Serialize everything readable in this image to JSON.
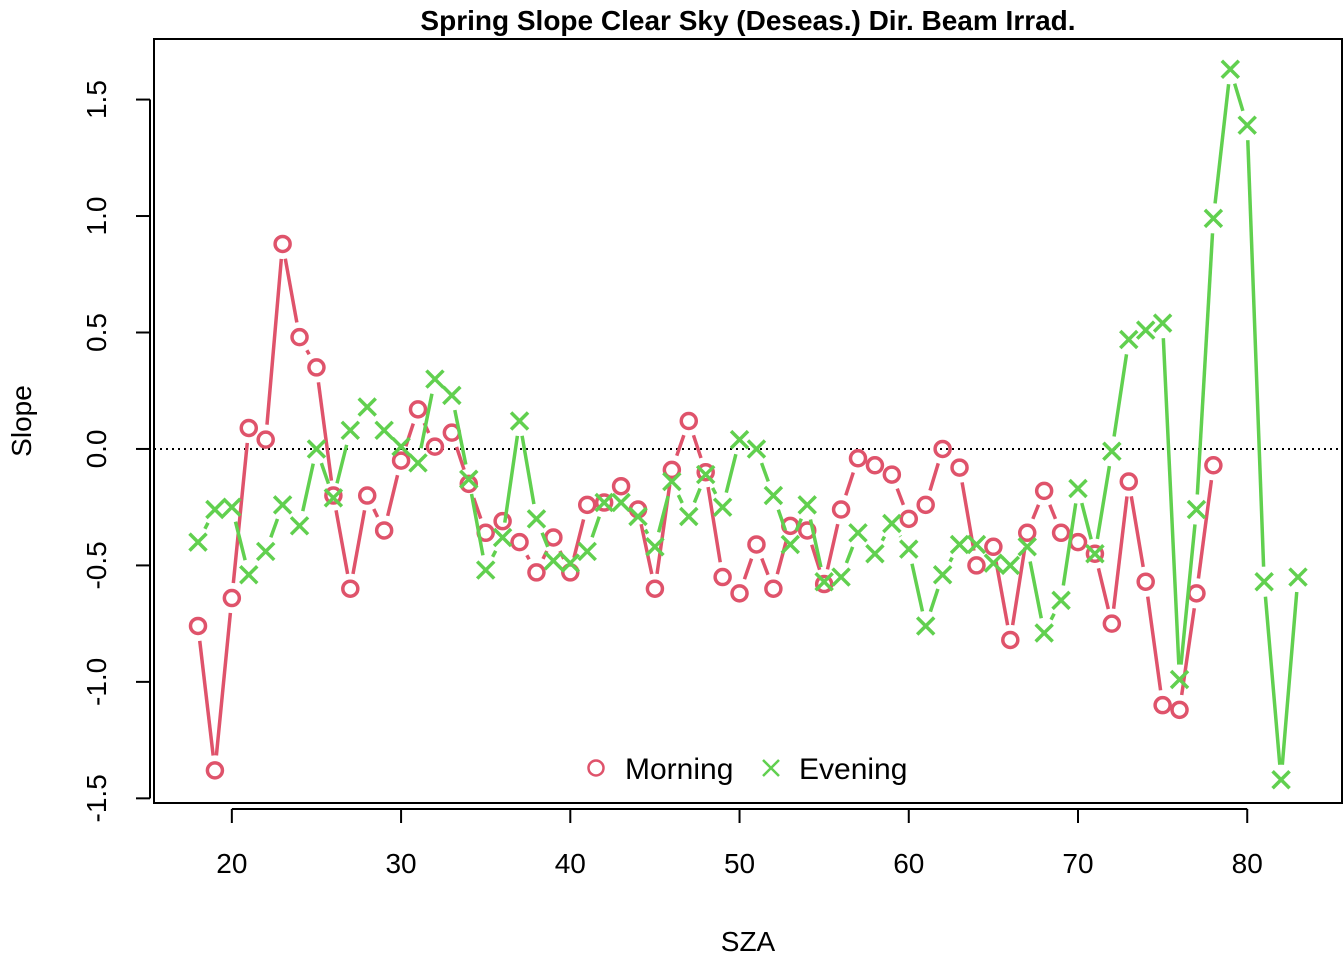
{
  "chart_data": {
    "type": "line",
    "title": "Spring Slope Clear Sky (Deseas.) Dir. Beam Irrad.",
    "xlabel": "SZA",
    "ylabel": "Slope",
    "xlim": [
      15.4,
      85.6
    ],
    "ylim": [
      -1.52,
      1.76
    ],
    "x_ticks": [
      20,
      30,
      40,
      50,
      60,
      70,
      80
    ],
    "x_tick_labels": [
      "20",
      "30",
      "40",
      "50",
      "60",
      "70",
      "80"
    ],
    "y_ticks": [
      -1.5,
      -1.0,
      -0.5,
      0.0,
      0.5,
      1.0,
      1.5
    ],
    "y_tick_labels": [
      "-1.5",
      "-1.0",
      "-0.5",
      "0.0",
      "0.5",
      "1.0",
      "1.5"
    ],
    "reference_line": {
      "y": 0,
      "style": "dotted"
    },
    "grid": false,
    "legend": {
      "placement": "bottom-center"
    },
    "series": [
      {
        "name": "Morning",
        "marker": "circle",
        "color": "#DF536B",
        "x": [
          18,
          19,
          20,
          21,
          22,
          23,
          24,
          25,
          26,
          27,
          28,
          29,
          30,
          31,
          32,
          33,
          34,
          35,
          36,
          37,
          38,
          39,
          40,
          41,
          42,
          43,
          44,
          45,
          46,
          47,
          48,
          49,
          50,
          51,
          52,
          53,
          54,
          55,
          56,
          57,
          58,
          59,
          60,
          61,
          62,
          63,
          64,
          65,
          66,
          67,
          68,
          69,
          70,
          71,
          72,
          73,
          74,
          75,
          76,
          77,
          78
        ],
        "y": [
          -0.76,
          -1.38,
          -0.64,
          0.09,
          0.04,
          0.88,
          0.48,
          0.35,
          -0.2,
          -0.6,
          -0.2,
          -0.35,
          -0.05,
          0.17,
          0.01,
          0.07,
          -0.15,
          -0.36,
          -0.31,
          -0.4,
          -0.53,
          -0.38,
          -0.53,
          -0.24,
          -0.23,
          -0.16,
          -0.26,
          -0.6,
          -0.09,
          0.12,
          -0.1,
          -0.55,
          -0.62,
          -0.41,
          -0.6,
          -0.33,
          -0.35,
          -0.58,
          -0.26,
          -0.04,
          -0.07,
          -0.11,
          -0.3,
          -0.24,
          0.0,
          -0.08,
          -0.5,
          -0.42,
          -0.82,
          -0.36,
          -0.18,
          -0.36,
          -0.4,
          -0.45,
          -0.75,
          -0.14,
          -0.57,
          -1.1,
          -1.12,
          -0.62,
          -0.07
        ]
      },
      {
        "name": "Evening",
        "marker": "cross",
        "color": "#61D04F",
        "x": [
          18,
          19,
          20,
          21,
          22,
          23,
          24,
          25,
          26,
          27,
          28,
          29,
          30,
          31,
          32,
          33,
          34,
          35,
          36,
          37,
          38,
          39,
          40,
          41,
          42,
          43,
          44,
          45,
          46,
          47,
          48,
          49,
          50,
          51,
          52,
          53,
          54,
          55,
          56,
          57,
          58,
          59,
          60,
          61,
          62,
          63,
          64,
          65,
          66,
          67,
          68,
          69,
          70,
          71,
          72,
          73,
          74,
          75,
          76,
          77,
          78,
          79,
          80,
          81,
          82,
          83
        ],
        "y": [
          -0.4,
          -0.26,
          -0.25,
          -0.54,
          -0.44,
          -0.24,
          -0.33,
          0.0,
          -0.21,
          0.08,
          0.18,
          0.08,
          0.01,
          -0.06,
          0.3,
          0.23,
          -0.13,
          -0.52,
          -0.38,
          0.12,
          -0.3,
          -0.48,
          -0.49,
          -0.44,
          -0.23,
          -0.23,
          -0.29,
          -0.42,
          -0.14,
          -0.29,
          -0.11,
          -0.25,
          0.04,
          0.0,
          -0.2,
          -0.41,
          -0.24,
          -0.57,
          -0.55,
          -0.36,
          -0.45,
          -0.32,
          -0.43,
          -0.76,
          -0.54,
          -0.41,
          -0.41,
          -0.49,
          -0.5,
          -0.42,
          -0.79,
          -0.65,
          -0.17,
          -0.45,
          -0.01,
          0.47,
          0.51,
          0.54,
          -0.99,
          -0.26,
          0.99,
          1.63,
          1.39,
          -0.57,
          -1.42,
          -0.55
        ]
      }
    ]
  }
}
